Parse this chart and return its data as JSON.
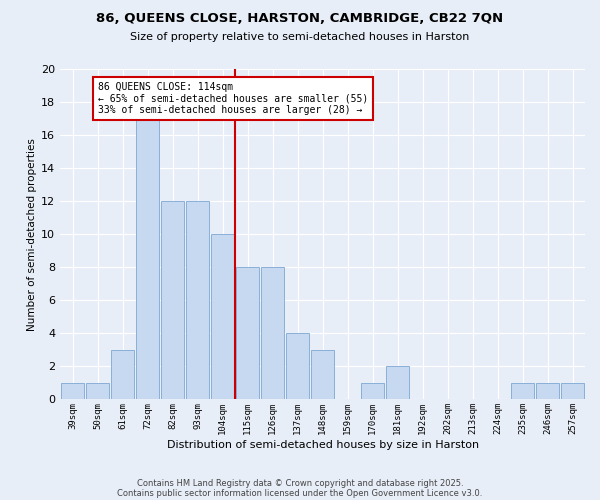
{
  "title1": "86, QUEENS CLOSE, HARSTON, CAMBRIDGE, CB22 7QN",
  "title2": "Size of property relative to semi-detached houses in Harston",
  "xlabel": "Distribution of semi-detached houses by size in Harston",
  "ylabel": "Number of semi-detached properties",
  "bin_labels": [
    "39sqm",
    "50sqm",
    "61sqm",
    "72sqm",
    "82sqm",
    "93sqm",
    "104sqm",
    "115sqm",
    "126sqm",
    "137sqm",
    "148sqm",
    "159sqm",
    "170sqm",
    "181sqm",
    "192sqm",
    "202sqm",
    "213sqm",
    "224sqm",
    "235sqm",
    "246sqm",
    "257sqm"
  ],
  "counts": [
    1,
    1,
    3,
    17,
    12,
    12,
    10,
    8,
    8,
    4,
    3,
    0,
    1,
    2,
    0,
    0,
    0,
    0,
    1,
    1,
    1
  ],
  "bar_color": "#c6d9f0",
  "bar_edge_color": "#8ab0d8",
  "bg_color": "#e8eef8",
  "grid_color": "#ffffff",
  "vline_index": 7,
  "vline_color": "#cc0000",
  "annotation_title": "86 QUEENS CLOSE: 114sqm",
  "annotation_line1": "← 65% of semi-detached houses are smaller (55)",
  "annotation_line2": "33% of semi-detached houses are larger (28) →",
  "annotation_box_color": "#cc0000",
  "ylim": [
    0,
    20
  ],
  "yticks": [
    0,
    2,
    4,
    6,
    8,
    10,
    12,
    14,
    16,
    18,
    20
  ],
  "footnote1": "Contains HM Land Registry data © Crown copyright and database right 2025.",
  "footnote2": "Contains public sector information licensed under the Open Government Licence v3.0."
}
